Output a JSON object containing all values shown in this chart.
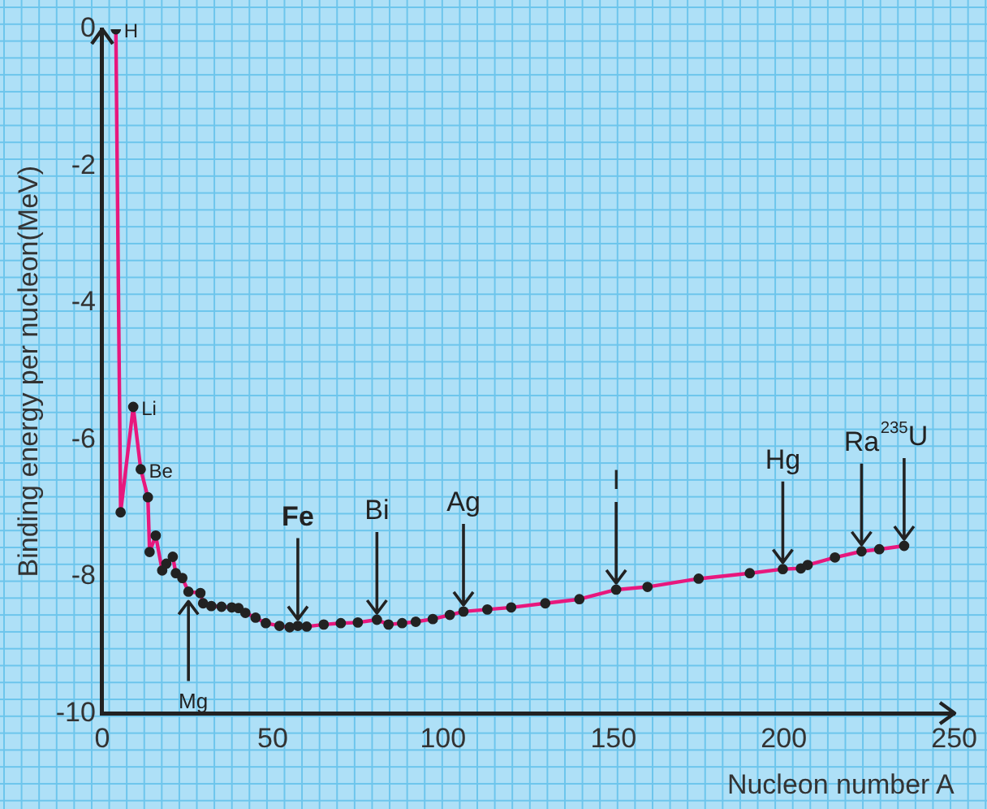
{
  "chart_data": {
    "type": "line",
    "xlabel": "Nucleon number A",
    "ylabel": "Binding energy per nucleon(MeV)",
    "xlim": [
      0,
      250
    ],
    "xticks": [
      0,
      50,
      100,
      150,
      200,
      250
    ],
    "ylim": [
      -10,
      0
    ],
    "yticks": [
      -10,
      -8,
      -6,
      -4,
      -2,
      0
    ],
    "grid": false,
    "legend": false,
    "marker": "circle",
    "line_style": "solid",
    "series": [
      {
        "color": "#e8177d",
        "x": [
          4,
          5.4,
          9.1,
          11.3,
          13.4,
          13.9,
          15.7,
          17.6,
          18.8,
          20.7,
          21.6,
          23.5,
          25.3,
          28.8,
          29.6,
          32,
          35,
          38,
          40,
          42,
          45,
          48,
          52,
          55,
          57.4,
          60,
          65,
          70,
          75,
          80.6,
          84,
          88,
          92,
          97,
          102,
          106,
          113,
          120,
          130,
          140,
          150.8,
          160,
          175,
          190,
          199.7,
          205,
          207,
          215,
          222.8,
          228,
          235.3
        ],
        "values": [
          0,
          -7.06,
          -5.52,
          -6.43,
          -6.84,
          -7.64,
          -7.4,
          -7.91,
          -7.81,
          -7.71,
          -7.95,
          -8.02,
          -8.22,
          -8.24,
          -8.39,
          -8.43,
          -8.44,
          -8.45,
          -8.46,
          -8.53,
          -8.6,
          -8.68,
          -8.72,
          -8.74,
          -8.72,
          -8.73,
          -8.7,
          -8.68,
          -8.67,
          -8.63,
          -8.7,
          -8.68,
          -8.66,
          -8.62,
          -8.56,
          -8.51,
          -8.48,
          -8.45,
          -8.39,
          -8.33,
          -8.19,
          -8.15,
          -8.03,
          -7.95,
          -7.89,
          -7.88,
          -7.83,
          -7.72,
          -7.63,
          -7.6,
          -7.55
        ]
      }
    ],
    "annotations": [
      {
        "text": "H",
        "x": 4,
        "y": 0
      },
      {
        "text": "Li",
        "x": 9.1,
        "y": -5.52
      },
      {
        "text": "Be",
        "x": 11.3,
        "y": -6.43
      },
      {
        "text": "Mg",
        "x": 25.3,
        "y": -8.22
      },
      {
        "text": "Fe",
        "x": 57.4,
        "y": -8.72
      },
      {
        "text": "Bi",
        "x": 80.6,
        "y": -8.63
      },
      {
        "text": "Ag",
        "x": 106,
        "y": -8.51
      },
      {
        "text": "I",
        "x": 150.8,
        "y": -8.19
      },
      {
        "text": "Hg",
        "x": 199.7,
        "y": -7.89
      },
      {
        "text": "Ra",
        "x": 222.8,
        "y": -7.63
      },
      {
        "text": "$^{235}$U",
        "x": 235.3,
        "y": -7.55
      }
    ]
  }
}
